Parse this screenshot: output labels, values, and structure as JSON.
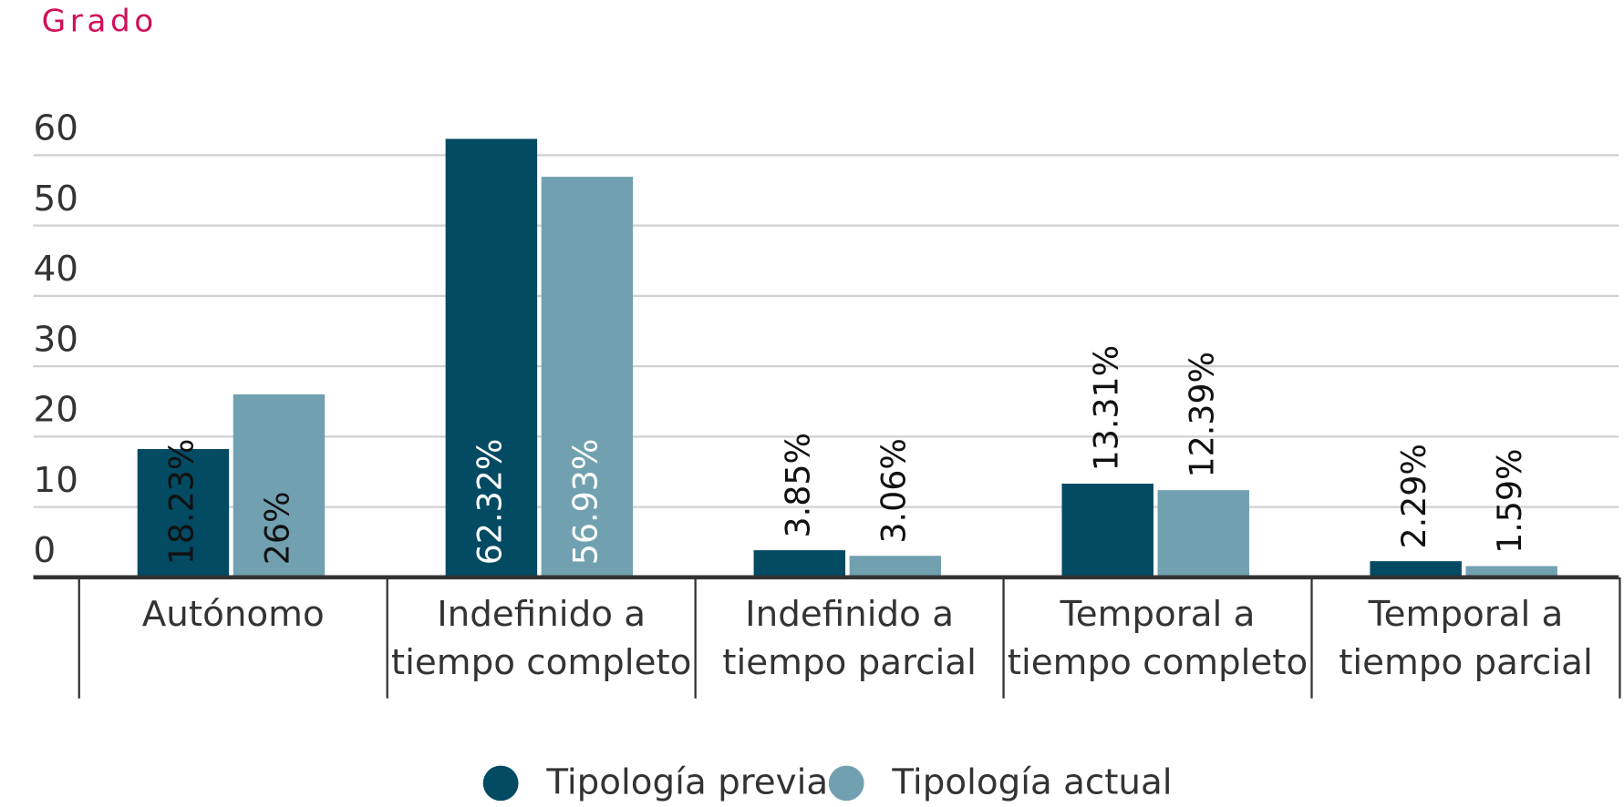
{
  "chart_data": {
    "type": "bar",
    "subtitle": "Grado",
    "categories": [
      [
        "Autónomo"
      ],
      [
        "Indefinido a",
        "tiempo completo"
      ],
      [
        "Indefinido a",
        "tiempo parcial"
      ],
      [
        "Temporal a",
        "tiempo completo"
      ],
      [
        "Temporal a",
        "tiempo parcial"
      ]
    ],
    "series": [
      {
        "name": "Tipología previa",
        "color": "#034a63",
        "values": [
          18.23,
          62.32,
          3.85,
          13.31,
          2.29
        ],
        "value_labels": [
          "18.23%",
          "62.32%",
          "3.85%",
          "13.31%",
          "2.29%"
        ]
      },
      {
        "name": "Tipología actual",
        "color": "#71a1b0",
        "values": [
          26,
          56.93,
          3.06,
          12.39,
          1.59
        ],
        "value_labels": [
          "26%",
          "56.93%",
          "3.06%",
          "12.39%",
          "1.59%"
        ]
      }
    ],
    "ylim": [
      0,
      60
    ],
    "yticks": [
      0,
      10,
      20,
      30,
      40,
      50,
      60
    ],
    "grid": true
  }
}
